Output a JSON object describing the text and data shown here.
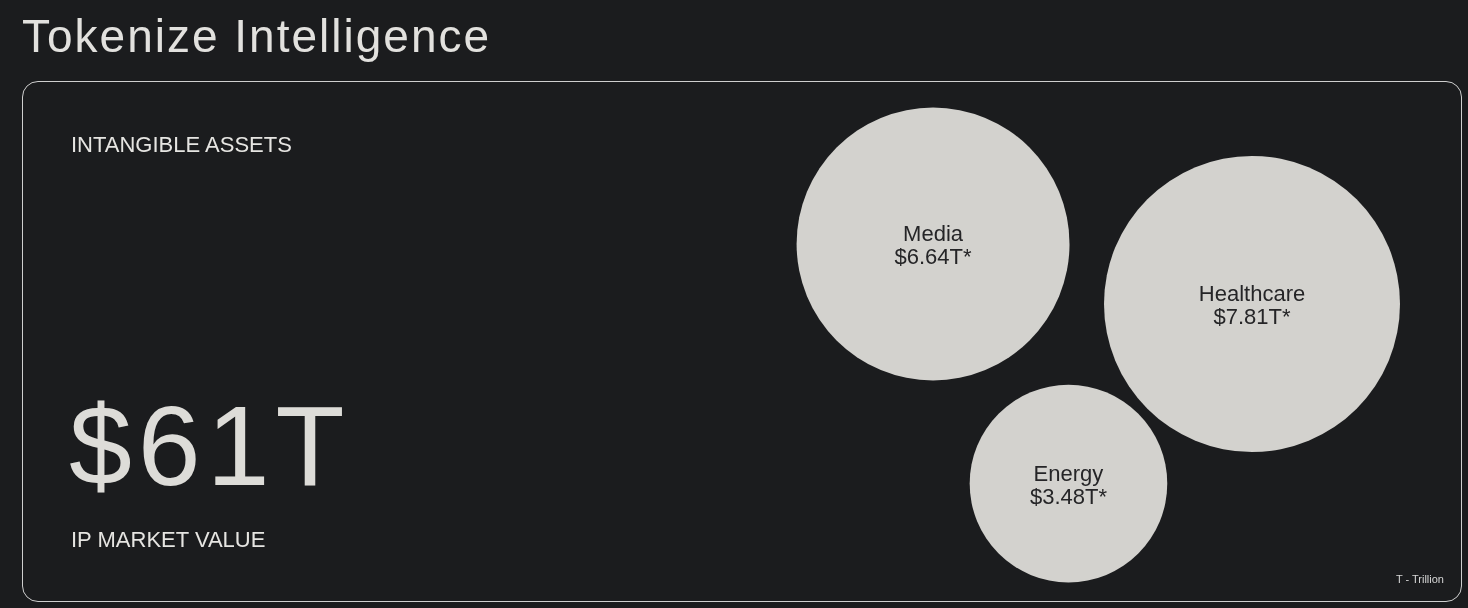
{
  "chart_data": {
    "type": "other",
    "title": "Tokenize Intelligence",
    "subtitle": "INTANGIBLE ASSETS",
    "categories": [
      "Media",
      "Healthcare",
      "Energy"
    ],
    "values": [
      6.64,
      7.81,
      3.48
    ],
    "value_labels": [
      "$6.64T*",
      "$7.81T*",
      "$3.48T*"
    ],
    "colors": [
      "#d3d2ce",
      "#d3d2ce",
      "#d3d2ce"
    ],
    "annotations": [
      "$61T",
      "IP MARKET VALUE",
      "T - Trillion"
    ]
  }
}
